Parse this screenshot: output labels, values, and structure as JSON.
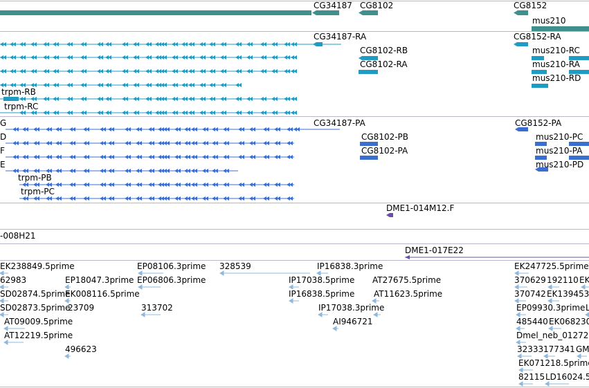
{
  "colors": {
    "gene": "#3f8f8f",
    "transcript_a": "#1f9bc4",
    "transcript_b": "#3a6fd0",
    "clone": "#6a4fa8",
    "est": "#8fb9dc",
    "divider": "#a8a8c8"
  },
  "genes": [
    {
      "label": "CG34187"
    },
    {
      "label": "CG8102"
    },
    {
      "label": "CG8152"
    },
    {
      "label": "mus210"
    }
  ],
  "transcripts_r": [
    {
      "label": "CG34187-RA"
    },
    {
      "label": "CG8152-RA"
    },
    {
      "label": "CG8102-RB"
    },
    {
      "label": "CG8102-RA"
    },
    {
      "label": "mus210-RC"
    },
    {
      "label": "mus210-RA"
    },
    {
      "label": "mus210-RD"
    },
    {
      "label": "trpm-RB"
    },
    {
      "label": "trpm-RC"
    }
  ],
  "transcripts_p": [
    {
      "label": "G"
    },
    {
      "label": "CG34187-PA"
    },
    {
      "label": "CG8152-PA"
    },
    {
      "label": "D"
    },
    {
      "label": "CG8102-PB"
    },
    {
      "label": "mus210-PC"
    },
    {
      "label": "F"
    },
    {
      "label": "CG8102-PA"
    },
    {
      "label": "mus210-PA"
    },
    {
      "label": "E"
    },
    {
      "label": "mus210-PD"
    },
    {
      "label": "trpm-PB"
    },
    {
      "label": "trpm-PC"
    }
  ],
  "clones": [
    {
      "label": "DME1-014M12.F"
    },
    {
      "label": "-008H21"
    },
    {
      "label": "DME1-017E22"
    }
  ],
  "ests": [
    {
      "label": "EK238849.5prime"
    },
    {
      "label": "EP08106.3prime"
    },
    {
      "label": "328539"
    },
    {
      "label": "IP16838.3prime"
    },
    {
      "label": "EK247725.5prime"
    },
    {
      "label": "62983"
    },
    {
      "label": "EP18047.3prime"
    },
    {
      "label": "EP06806.3prime"
    },
    {
      "label": "IP17038.5prime"
    },
    {
      "label": "370629"
    },
    {
      "label": "192110"
    },
    {
      "label": "EK"
    },
    {
      "label": "SD02874.5prime"
    },
    {
      "label": "EK008116.5prime"
    },
    {
      "label": "AT27675.5prime"
    },
    {
      "label": "IP16838.5prime"
    },
    {
      "label": "370742"
    },
    {
      "label": "EK139453"
    },
    {
      "label": "SD02873.5prime"
    },
    {
      "label": "23709"
    },
    {
      "label": "313702"
    },
    {
      "label": "AT11623.5prime"
    },
    {
      "label": "EP09930.3prime"
    },
    {
      "label": "L"
    },
    {
      "label": "IP17038.3prime"
    },
    {
      "label": "AT09009.5prime"
    },
    {
      "label": "485440"
    },
    {
      "label": "EK068230"
    },
    {
      "label": "AI946721"
    },
    {
      "label": "AT12219.5prime"
    },
    {
      "label": "Dmel_neb_01272"
    },
    {
      "label": "496623"
    },
    {
      "label": "32333"
    },
    {
      "label": "177341"
    },
    {
      "label": "GM"
    },
    {
      "label": "EK071218.5prime"
    },
    {
      "label": "82115"
    },
    {
      "label": "LD16024.5"
    }
  ]
}
